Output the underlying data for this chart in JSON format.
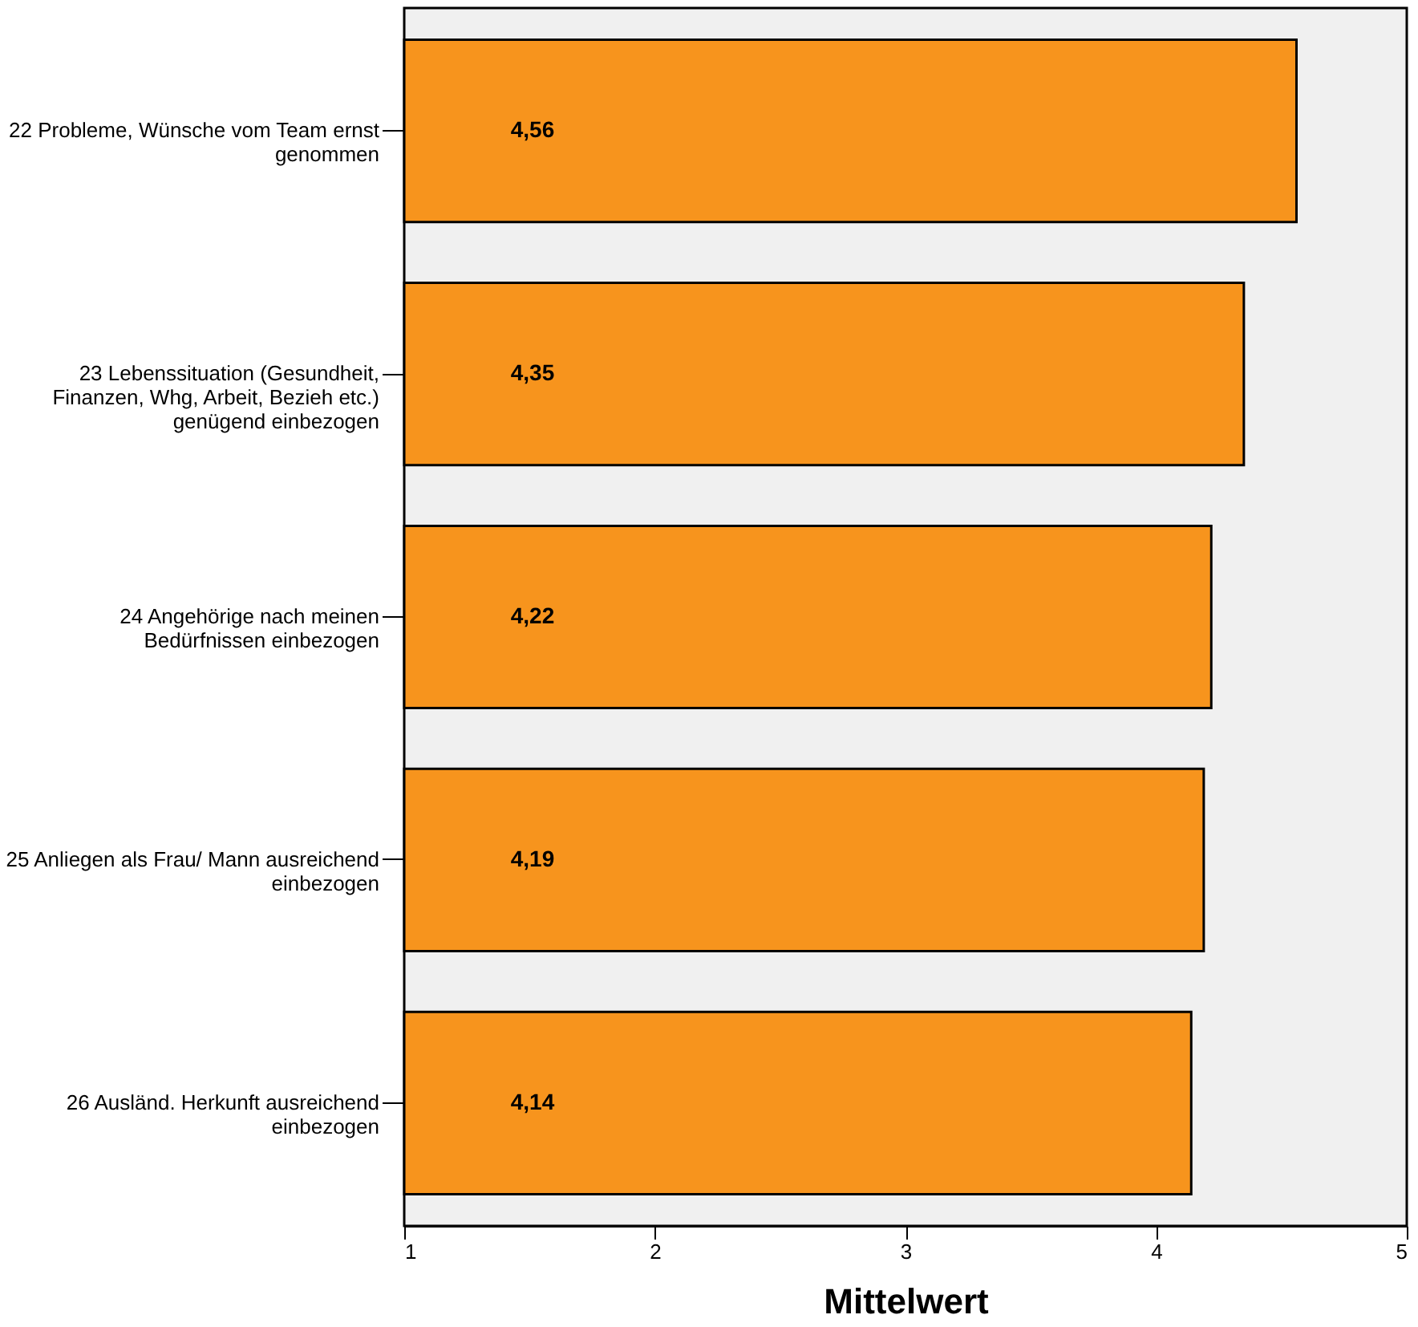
{
  "chart_data": {
    "type": "bar",
    "orientation": "horizontal",
    "xlabel": "Mittelwert",
    "categories": [
      "22 Probleme, Wünsche vom Team ernst\ngenommen",
      "23 Lebenssituation (Gesundheit,\nFinanzen, Whg, Arbeit, Bezieh etc.)\ngenügend einbezogen",
      "24 Angehörige nach meinen\nBedürfnissen einbezogen",
      "25 Anliegen als Frau/ Mann ausreichend\neinbezogen",
      "26 Ausländ. Herkunft ausreichend\neinbezogen"
    ],
    "values": [
      4.56,
      4.35,
      4.22,
      4.19,
      4.14
    ],
    "value_labels": [
      "4,56",
      "4,35",
      "4,22",
      "4,19",
      "4,14"
    ],
    "color": "#f7941d",
    "xlim": [
      1,
      5
    ],
    "xticks": [
      1,
      2,
      3,
      4,
      5
    ],
    "grid": false
  }
}
